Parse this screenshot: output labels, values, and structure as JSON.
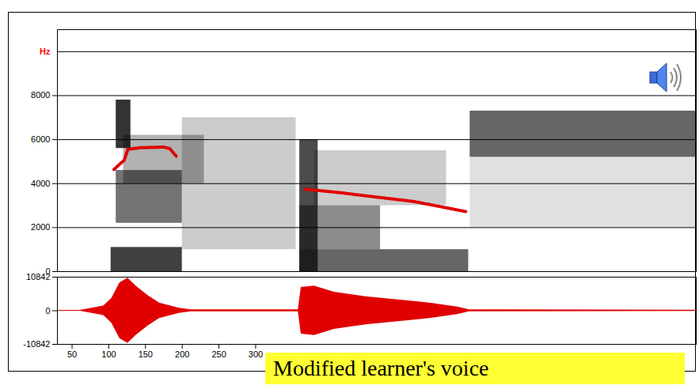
{
  "chart_data": {
    "type": "spectrogram",
    "annotation": "Modified learner's voice",
    "xlim": [
      30,
      900
    ],
    "xticks": [
      50,
      100,
      150,
      200,
      250,
      300
    ],
    "ylim": [
      0,
      11000
    ],
    "yticks": [
      0,
      2000,
      4000,
      6000,
      8000,
      {
        "value": 10000,
        "label": "Hz"
      }
    ],
    "grid": true,
    "energy": [
      {
        "t0": 110,
        "t1": 130,
        "f0": 5600,
        "f1": 7800,
        "level": 0.8
      },
      {
        "t0": 103,
        "t1": 200,
        "f0": 0,
        "f1": 1100,
        "level": 0.75
      },
      {
        "t0": 110,
        "t1": 200,
        "f0": 2200,
        "f1": 4600,
        "level": 0.55
      },
      {
        "t0": 120,
        "t1": 230,
        "f0": 4000,
        "f1": 6200,
        "level": 0.3
      },
      {
        "t0": 200,
        "t1": 355,
        "f0": 1000,
        "f1": 7000,
        "level": 0.2
      },
      {
        "t0": 360,
        "t1": 385,
        "f0": 0,
        "f1": 6000,
        "level": 0.7
      },
      {
        "t0": 360,
        "t1": 590,
        "f0": 0,
        "f1": 1000,
        "level": 0.6
      },
      {
        "t0": 360,
        "t1": 470,
        "f0": 1000,
        "f1": 3000,
        "level": 0.45
      },
      {
        "t0": 380,
        "t1": 560,
        "f0": 3000,
        "f1": 5500,
        "level": 0.2
      },
      {
        "t0": 592,
        "t1": 900,
        "f0": 5200,
        "f1": 7300,
        "level": 0.6
      },
      {
        "t0": 592,
        "t1": 900,
        "f0": 2000,
        "f1": 5200,
        "level": 0.12
      }
    ],
    "formant_tracks": [
      {
        "color": "#e00000",
        "line_style": "dotted",
        "x": [
          107,
          115,
          121,
          126,
          142,
          175,
          183,
          193
        ],
        "values": [
          4640,
          4890,
          5060,
          5560,
          5630,
          5660,
          5590,
          5200
        ]
      },
      {
        "color": "#e00000",
        "line_style": "dotted",
        "x": [
          367,
          418,
          461,
          515,
          586
        ],
        "values": [
          3750,
          3575,
          3400,
          3190,
          2730
        ]
      }
    ],
    "waveform": {
      "color": "#e00000",
      "ylim": [
        -10842,
        10842
      ],
      "yticks": [
        -10842,
        0,
        10842
      ],
      "x": [
        30,
        61,
        93,
        104,
        115,
        126,
        137,
        153,
        169,
        196,
        212,
        358,
        362,
        380,
        407,
        450,
        494,
        537,
        575,
        591,
        900
      ],
      "amplitude": [
        150,
        150,
        1500,
        4000,
        9000,
        10500,
        8000,
        5000,
        2500,
        800,
        300,
        300,
        7500,
        8000,
        6000,
        4500,
        3500,
        2500,
        1200,
        300,
        200
      ]
    }
  }
}
